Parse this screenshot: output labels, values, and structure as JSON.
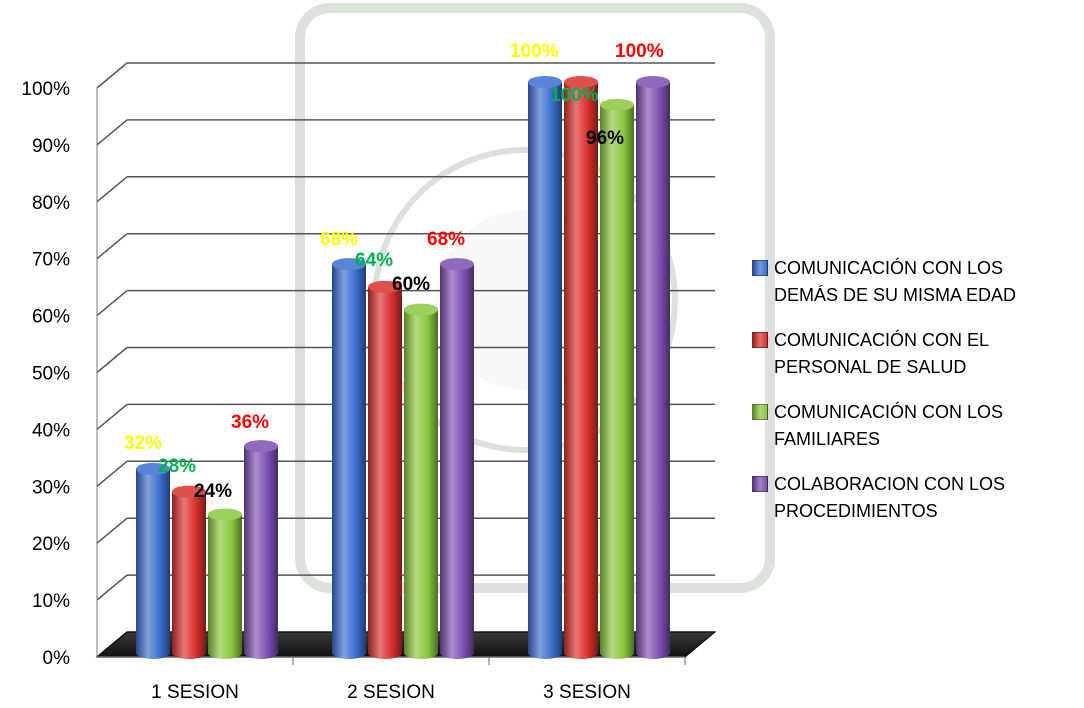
{
  "chart_data": {
    "type": "bar",
    "categories": [
      "1 SESION",
      "2 SESION",
      "3 SESION"
    ],
    "series": [
      {
        "name": "COMUNICACIÓN CON LOS DEMÁS DE SU MISMA EDAD",
        "values": [
          32,
          68,
          100
        ],
        "color": "#3a6fd0",
        "label_color": "#ffff00"
      },
      {
        "name": "COMUNICACIÓN CON EL PERSONAL DE SALUD",
        "values": [
          28,
          64,
          100
        ],
        "color": "#d9302c",
        "label_color": "#00b050"
      },
      {
        "name": "COMUNICACIÓN CON LOS FAMILIARES",
        "values": [
          24,
          60,
          96
        ],
        "color": "#8cc63f",
        "label_color": "#000000"
      },
      {
        "name": "COLABORACION CON LOS PROCEDIMIENTOS",
        "values": [
          36,
          68,
          100
        ],
        "color": "#7c4fb0",
        "label_color": "#ff0000"
      }
    ],
    "data_labels": [
      [
        "32%",
        "68%",
        "100%"
      ],
      [
        "28%",
        "64%",
        "100%"
      ],
      [
        "24%",
        "60%",
        "96%"
      ],
      [
        "36%",
        "68%",
        "100%"
      ]
    ],
    "y_ticks": [
      "0%",
      "10%",
      "20%",
      "30%",
      "40%",
      "50%",
      "60%",
      "70%",
      "80%",
      "90%",
      "100%"
    ],
    "ylim": [
      0,
      100
    ],
    "grid": true,
    "legend_position": "right",
    "title": "",
    "xlabel": "",
    "ylabel": ""
  },
  "legend": [
    "COMUNICACIÓN CON LOS\nDEMÁS DE SU MISMA EDAD",
    "COMUNICACIÓN CON EL\nPERSONAL DE SALUD",
    "COMUNICACIÓN CON LOS\nFAMILIARES",
    "COLABORACION CON LOS\nPROCEDIMIENTOS"
  ]
}
